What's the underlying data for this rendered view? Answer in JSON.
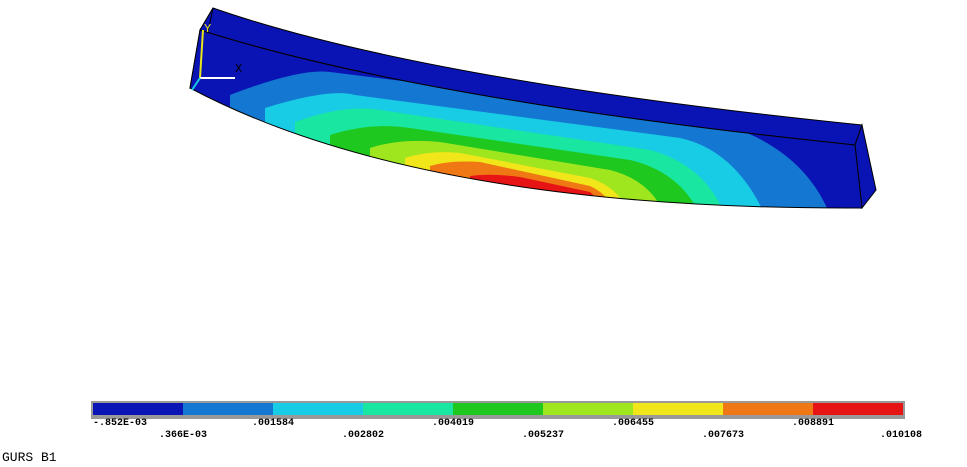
{
  "caption": "GURS B1",
  "triad": {
    "x": "X",
    "y": "Y"
  },
  "legend": {
    "colors": [
      "#0a14b4",
      "#1478d2",
      "#19cce6",
      "#19e6a0",
      "#1ec81e",
      "#a0e61e",
      "#f0e619",
      "#f07814",
      "#e61414"
    ],
    "labels": [
      "-.852E-03",
      ".366E-03",
      ".001584",
      ".002802",
      ".004019",
      ".005237",
      ".006455",
      ".007673",
      ".008891",
      ".010108"
    ]
  }
}
